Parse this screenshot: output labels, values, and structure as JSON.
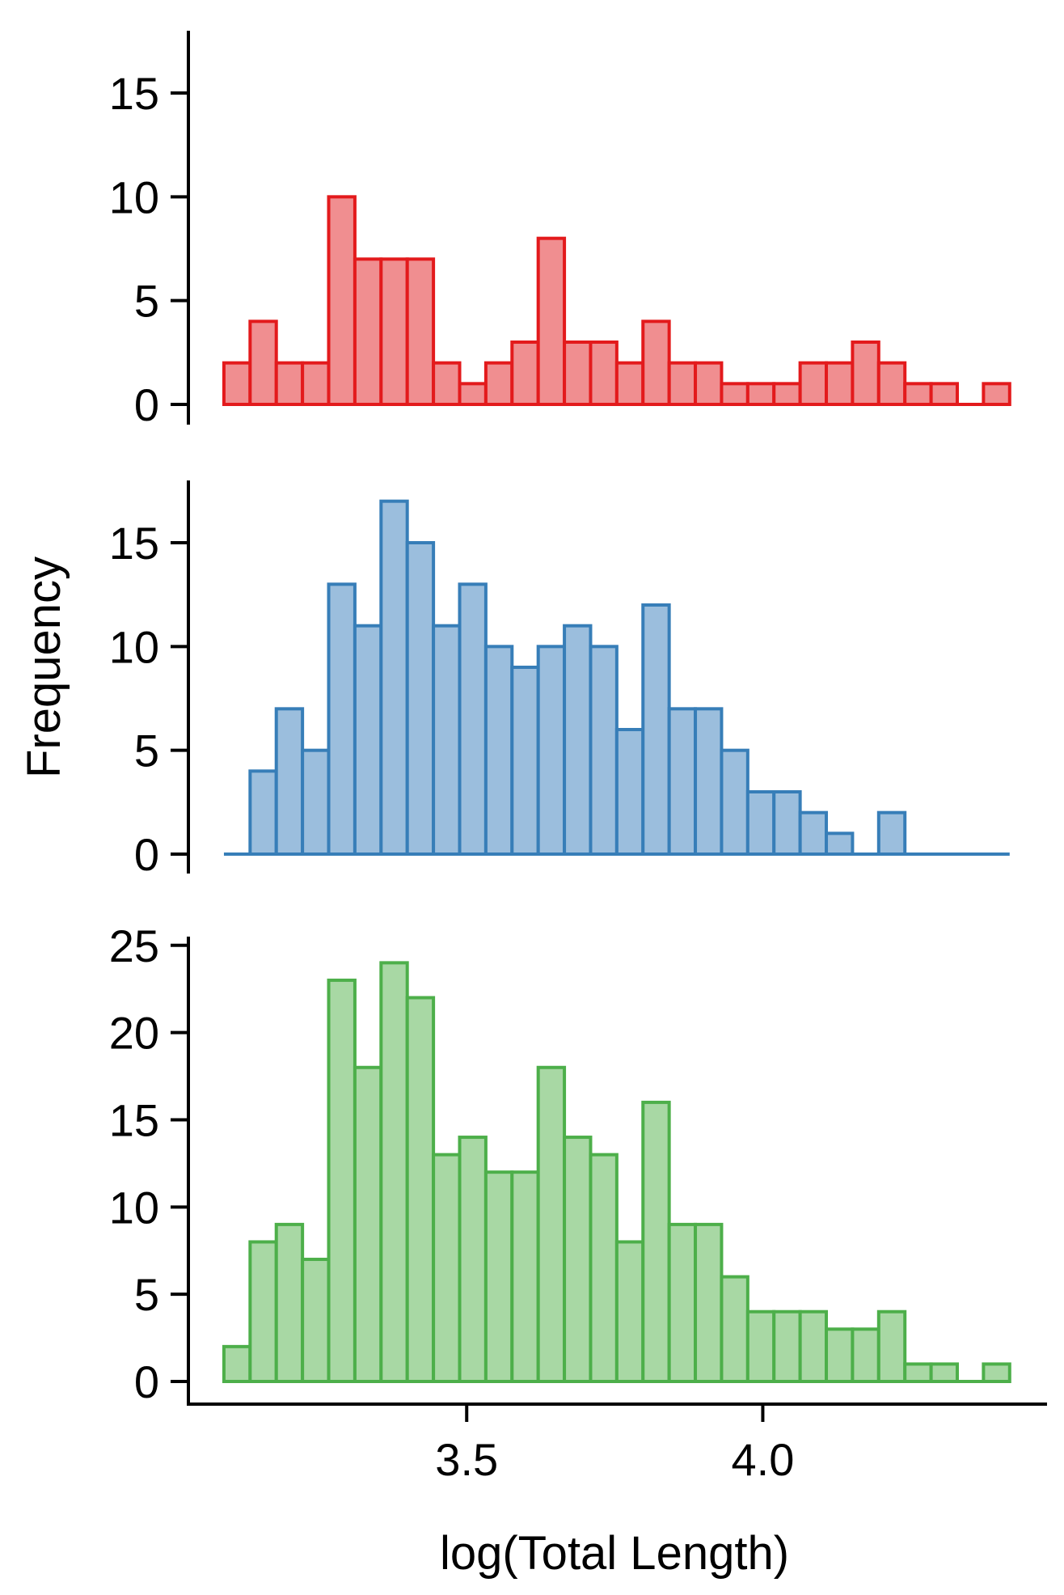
{
  "chart_data": [
    {
      "type": "bar",
      "panel": "top",
      "color": "#e31a1c",
      "fill": "#f08e90",
      "bin_start": 3.09,
      "bin_width": 0.04423,
      "values": [
        2,
        4,
        2,
        2,
        10,
        7,
        7,
        7,
        2,
        1,
        2,
        3,
        8,
        3,
        3,
        2,
        4,
        2,
        2,
        1,
        1,
        1,
        2,
        2,
        3,
        2,
        1,
        1,
        0,
        1
      ],
      "ylim": [
        0,
        18
      ],
      "yticks": [
        0,
        5,
        10,
        15
      ],
      "ytick_labels": [
        "0",
        "5",
        "10",
        "15"
      ]
    },
    {
      "type": "bar",
      "panel": "middle",
      "color": "#377eb8",
      "fill": "#9bbedd",
      "bin_start": 3.09,
      "bin_width": 0.04423,
      "values": [
        0,
        4,
        7,
        5,
        13,
        11,
        17,
        15,
        11,
        13,
        10,
        9,
        10,
        11,
        10,
        6,
        12,
        7,
        7,
        5,
        3,
        3,
        2,
        1,
        0,
        2,
        0,
        0,
        0,
        0
      ],
      "ylim": [
        0,
        18
      ],
      "yticks": [
        0,
        5,
        10,
        15
      ],
      "ytick_labels": [
        "0",
        "5",
        "10",
        "15"
      ]
    },
    {
      "type": "bar",
      "panel": "bottom",
      "color": "#4daf4a",
      "fill": "#a8d8a4",
      "bin_start": 3.09,
      "bin_width": 0.04423,
      "values": [
        2,
        8,
        9,
        7,
        23,
        18,
        24,
        22,
        13,
        14,
        12,
        12,
        18,
        14,
        13,
        8,
        16,
        9,
        9,
        6,
        4,
        4,
        4,
        3,
        3,
        4,
        1,
        1,
        0,
        1
      ],
      "ylim": [
        0,
        25.5
      ],
      "yticks": [
        0,
        5,
        10,
        15,
        20,
        25
      ],
      "ytick_labels": [
        "0",
        "5",
        "10",
        "15",
        "20",
        "25"
      ]
    }
  ],
  "xaxis": {
    "xlim": [
      3.03,
      4.48
    ],
    "ticks": [
      3.5,
      4.0
    ],
    "tick_labels": [
      "3.5",
      "4.0"
    ],
    "label": "log(Total Length)"
  },
  "yaxis": {
    "label": "Frequency"
  }
}
